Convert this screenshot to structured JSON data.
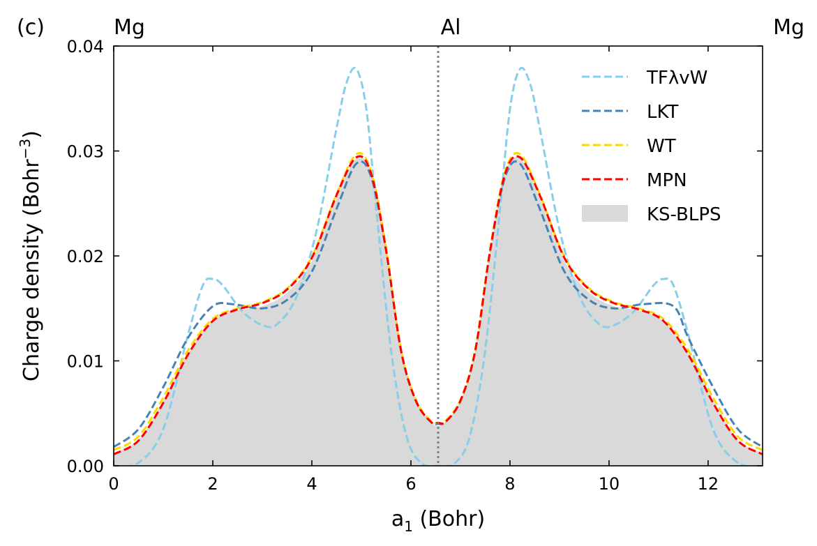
{
  "chart_data": {
    "type": "line",
    "panel_label": "(c)",
    "xlabel_main": "a",
    "xlabel_sub": "1",
    "xlabel_unit": " (Bohr)",
    "ylabel_main": "Charge density (Bohr",
    "ylabel_sup": "−3",
    "ylabel_close": ")",
    "xlim": [
      0,
      13.1
    ],
    "ylim": [
      0,
      0.04
    ],
    "xticks": [
      0,
      2,
      4,
      6,
      8,
      10,
      12
    ],
    "xtick_labels": [
      "0",
      "2",
      "4",
      "6",
      "8",
      "10",
      "12"
    ],
    "yticks": [
      0,
      0.01,
      0.02,
      0.03,
      0.04
    ],
    "ytick_labels": [
      "0.00",
      "0.01",
      "0.02",
      "0.03",
      "0.04"
    ],
    "top_labels": [
      {
        "text": "Mg",
        "x": 0
      },
      {
        "text": "Al",
        "x": 6.55
      },
      {
        "text": "Mg",
        "x": 13.1
      }
    ],
    "vline_x": 6.55,
    "legend_position": "upper right",
    "fill": {
      "name": "KS-BLPS",
      "color": "#d9d9d9",
      "x": [
        0,
        0.5,
        1,
        1.5,
        2,
        2.5,
        3,
        3.5,
        4,
        4.5,
        4.9,
        5.2,
        5.5,
        5.8,
        6.1,
        6.4,
        6.55,
        6.7,
        7.0,
        7.3,
        7.6,
        7.9,
        8.2,
        8.6,
        9.1,
        9.6,
        10.1,
        10.6,
        11.1,
        11.6,
        12.1,
        12.6,
        13.1
      ],
      "y": [
        0.0012,
        0.0025,
        0.0062,
        0.0107,
        0.0138,
        0.0148,
        0.0152,
        0.0165,
        0.0195,
        0.0255,
        0.0293,
        0.0278,
        0.0205,
        0.011,
        0.0062,
        0.0042,
        0.0038,
        0.0042,
        0.0062,
        0.011,
        0.0205,
        0.0278,
        0.0293,
        0.0255,
        0.0195,
        0.0165,
        0.0152,
        0.0148,
        0.0138,
        0.0107,
        0.0062,
        0.0025,
        0.0012
      ]
    },
    "series": [
      {
        "name": "TFλvW",
        "color": "#87ceeb",
        "x": [
          0,
          0.5,
          1,
          1.5,
          1.8,
          2.0,
          2.2,
          2.6,
          3.0,
          3.3,
          3.7,
          4.1,
          4.5,
          4.7,
          4.9,
          5.1,
          5.3,
          5.6,
          5.9,
          6.2,
          6.55,
          6.9,
          7.2,
          7.5,
          7.8,
          8.0,
          8.2,
          8.4,
          8.6,
          9.0,
          9.4,
          9.8,
          10.1,
          10.5,
          10.9,
          11.1,
          11.3,
          11.6,
          12.1,
          12.6,
          13.1
        ],
        "y": [
          0.0,
          0.0003,
          0.0035,
          0.0125,
          0.0172,
          0.0178,
          0.0172,
          0.0147,
          0.0134,
          0.0135,
          0.0162,
          0.0225,
          0.0322,
          0.0365,
          0.0378,
          0.034,
          0.0245,
          0.011,
          0.003,
          0.0003,
          0.0,
          0.0003,
          0.003,
          0.011,
          0.0245,
          0.034,
          0.0378,
          0.0365,
          0.0322,
          0.0225,
          0.0162,
          0.0135,
          0.0134,
          0.0147,
          0.0172,
          0.0178,
          0.0172,
          0.0125,
          0.0035,
          0.0003,
          0.0
        ]
      },
      {
        "name": "LKT",
        "color": "#4682b4",
        "x": [
          0,
          0.5,
          1,
          1.5,
          2,
          2.4,
          3,
          3.5,
          4,
          4.5,
          4.9,
          5.2,
          5.5,
          5.8,
          6.1,
          6.4,
          6.55,
          6.7,
          7.0,
          7.3,
          7.6,
          7.9,
          8.2,
          8.6,
          9.1,
          9.6,
          10.1,
          10.7,
          11.3,
          11.6,
          12.1,
          12.6,
          13.1
        ],
        "y": [
          0.0018,
          0.0035,
          0.0075,
          0.0122,
          0.0152,
          0.0154,
          0.015,
          0.0158,
          0.0185,
          0.0245,
          0.0288,
          0.0275,
          0.0205,
          0.011,
          0.0062,
          0.0042,
          0.004,
          0.0042,
          0.0062,
          0.011,
          0.0205,
          0.0275,
          0.0288,
          0.0245,
          0.0185,
          0.0158,
          0.015,
          0.0154,
          0.0152,
          0.0122,
          0.0075,
          0.0035,
          0.0018
        ]
      },
      {
        "name": "WT",
        "color": "#ffd700",
        "x": [
          0,
          0.5,
          1,
          1.5,
          2,
          2.5,
          3,
          3.5,
          4,
          4.5,
          4.9,
          5.2,
          5.5,
          5.8,
          6.1,
          6.4,
          6.55,
          6.7,
          7.0,
          7.3,
          7.6,
          7.9,
          8.2,
          8.6,
          9.1,
          9.6,
          10.1,
          10.6,
          11.1,
          11.6,
          12.1,
          12.6,
          13.1
        ],
        "y": [
          0.0015,
          0.0028,
          0.0065,
          0.011,
          0.014,
          0.015,
          0.0156,
          0.0169,
          0.0199,
          0.0259,
          0.0297,
          0.028,
          0.0207,
          0.0111,
          0.0063,
          0.0043,
          0.0041,
          0.0043,
          0.0063,
          0.0111,
          0.0207,
          0.028,
          0.0297,
          0.0259,
          0.0199,
          0.0169,
          0.0156,
          0.015,
          0.014,
          0.011,
          0.0065,
          0.0028,
          0.0015
        ]
      },
      {
        "name": "MPN",
        "color": "#ff0000",
        "x": [
          0,
          0.5,
          1,
          1.5,
          2,
          2.5,
          3,
          3.5,
          4,
          4.5,
          4.9,
          5.2,
          5.5,
          5.8,
          6.1,
          6.4,
          6.55,
          6.7,
          7.0,
          7.3,
          7.6,
          7.9,
          8.2,
          8.6,
          9.1,
          9.6,
          10.1,
          10.6,
          11.1,
          11.6,
          12.1,
          12.6,
          13.1
        ],
        "y": [
          0.0011,
          0.0024,
          0.006,
          0.0106,
          0.0138,
          0.0149,
          0.0155,
          0.0168,
          0.0198,
          0.0258,
          0.0294,
          0.0278,
          0.0205,
          0.011,
          0.0062,
          0.0042,
          0.0041,
          0.0042,
          0.0062,
          0.011,
          0.0205,
          0.0278,
          0.0294,
          0.0258,
          0.0198,
          0.0168,
          0.0155,
          0.0149,
          0.0138,
          0.0106,
          0.006,
          0.0024,
          0.0011
        ]
      }
    ]
  }
}
